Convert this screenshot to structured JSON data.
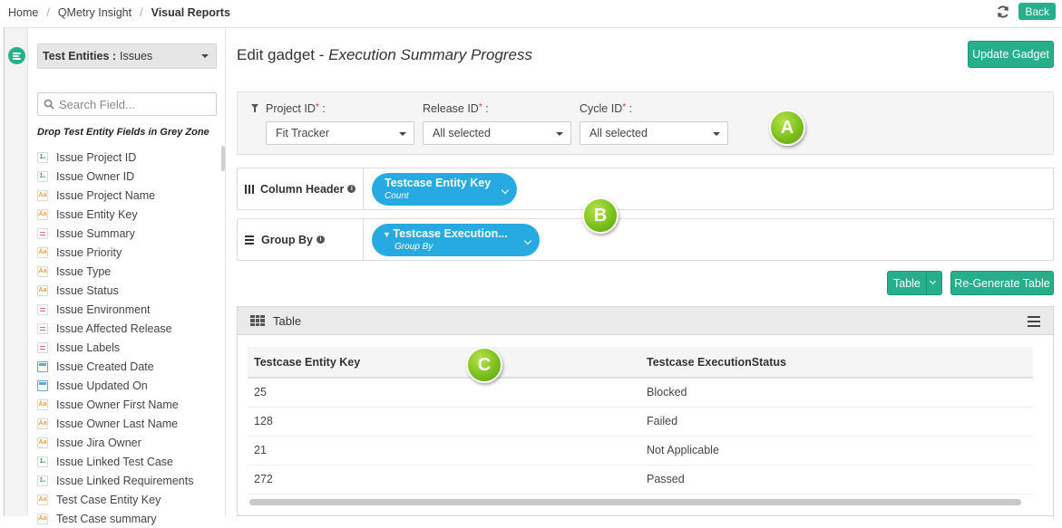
{
  "breadcrumb": [
    "Home",
    "QMetry Insight",
    "Visual Reports"
  ],
  "back_label": "Back",
  "sidebar": {
    "entity_label": "Test Entities :",
    "entity_value": "Issues",
    "search_placeholder": "Search Field...",
    "drop_note": "Drop Test Entity Fields in Grey Zone",
    "fields": [
      {
        "label": "Issue Project ID",
        "icon": "number-field-icon",
        "glyph": "1₁"
      },
      {
        "label": "Issue Owner ID",
        "icon": "number-field-icon",
        "glyph": "1₁"
      },
      {
        "label": "Issue Project Name",
        "icon": "string-field-icon",
        "glyph": "Aa"
      },
      {
        "label": "Issue Entity Key",
        "icon": "string-field-icon",
        "glyph": "Aa"
      },
      {
        "label": "Issue Summary",
        "icon": "text-field-icon",
        "glyph": ""
      },
      {
        "label": "Issue Priority",
        "icon": "string-field-icon",
        "glyph": "Aa"
      },
      {
        "label": "Issue Type",
        "icon": "string-field-icon",
        "glyph": "Aa"
      },
      {
        "label": "Issue Status",
        "icon": "string-field-icon",
        "glyph": "Aa"
      },
      {
        "label": "Issue Environment",
        "icon": "text-field-icon",
        "glyph": ""
      },
      {
        "label": "Issue Affected Release",
        "icon": "text-field-icon",
        "glyph": ""
      },
      {
        "label": "Issue Labels",
        "icon": "text-field-icon",
        "glyph": ""
      },
      {
        "label": "Issue Created Date",
        "icon": "date-field-icon",
        "glyph": ""
      },
      {
        "label": "Issue Updated On",
        "icon": "date-field-icon",
        "glyph": ""
      },
      {
        "label": "Issue Owner First Name",
        "icon": "string-field-icon",
        "glyph": "Aa"
      },
      {
        "label": "Issue Owner Last Name",
        "icon": "string-field-icon",
        "glyph": "Aa"
      },
      {
        "label": "Issue Jira Owner",
        "icon": "string-field-icon",
        "glyph": "Aa"
      },
      {
        "label": "Issue Linked Test Case",
        "icon": "number-field-icon",
        "glyph": "1₁"
      },
      {
        "label": "Issue Linked Requirements",
        "icon": "number-field-icon",
        "glyph": "1₁"
      },
      {
        "label": "Test Case Entity Key",
        "icon": "string-field-icon",
        "glyph": "Aa"
      },
      {
        "label": "Test Case summary",
        "icon": "string-field-icon",
        "glyph": "Aa"
      }
    ]
  },
  "main": {
    "title_prefix": "Edit gadget - ",
    "title_name": "Execution Summary Progress",
    "update_label": "Update Gadget",
    "filters": [
      {
        "label": "Project ID",
        "value": "Fit Tracker"
      },
      {
        "label": "Release ID",
        "value": "All selected"
      },
      {
        "label": "Cycle ID",
        "value": "All selected"
      }
    ],
    "column_header": {
      "label": "Column Header",
      "pill_title": "Testcase Entity Key",
      "pill_sub": "Count"
    },
    "group_by": {
      "label": "Group By",
      "pill_title": "Testcase Execution...",
      "pill_sub": "Group By"
    },
    "view_label": "Table",
    "regen_label": "Re-Generate Table",
    "table_title": "Table",
    "columns": [
      "Testcase Entity Key",
      "Testcase ExecutionStatus"
    ],
    "rows": [
      [
        "25",
        "Blocked"
      ],
      [
        "128",
        "Failed"
      ],
      [
        "21",
        "Not Applicable"
      ],
      [
        "272",
        "Passed"
      ]
    ]
  },
  "badges": [
    "A",
    "B",
    "C"
  ],
  "colors": {
    "accent": "#27ae8a",
    "pill": "#27aae1",
    "badge": "#7cc11e"
  }
}
